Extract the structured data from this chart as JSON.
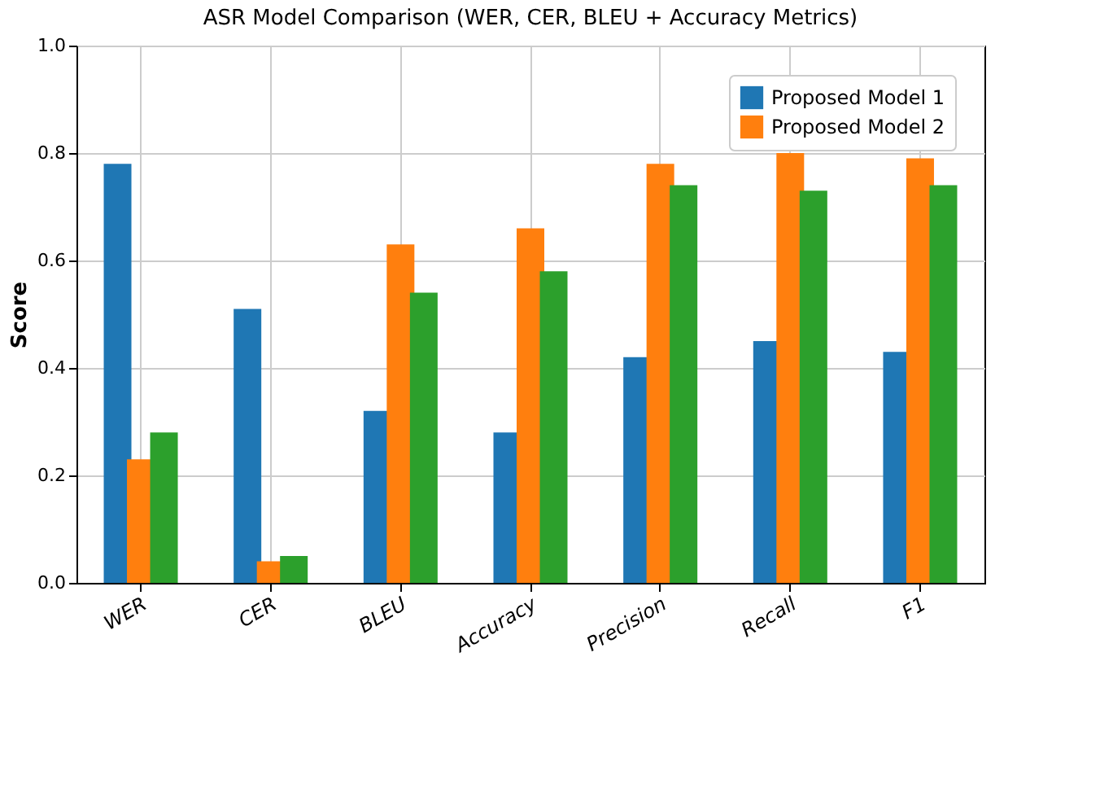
{
  "chart_data": {
    "type": "bar",
    "title": "ASR Model Comparison (WER, CER, BLEU + Accuracy Metrics)",
    "ylabel": "Score",
    "categories": [
      "WER",
      "CER",
      "BLEU",
      "Accuracy",
      "Precision",
      "Recall",
      "F1"
    ],
    "series": [
      {
        "name": "Proposed Model 1",
        "color": "#1f77b4",
        "values": [
          0.78,
          0.51,
          0.32,
          0.28,
          0.42,
          0.45,
          0.43
        ]
      },
      {
        "name": "Proposed Model 2",
        "color": "#ff7f0e",
        "values": [
          0.23,
          0.04,
          0.63,
          0.66,
          0.78,
          0.8,
          0.79
        ]
      },
      {
        "color": "#2ca02c",
        "values": [
          0.28,
          0.05,
          0.54,
          0.58,
          0.74,
          0.73,
          0.74
        ]
      }
    ],
    "ylim": [
      0,
      1
    ],
    "yticks": [
      {
        "value": 0,
        "label": "0.0"
      },
      {
        "value": 0.2,
        "label": "0.2"
      },
      {
        "value": 0.4,
        "label": "0.4"
      },
      {
        "value": 0.6,
        "label": "0.6"
      },
      {
        "value": 0.8,
        "label": "0.8"
      },
      {
        "value": 1,
        "label": "1.0"
      }
    ],
    "grid": true,
    "legend": "top right"
  }
}
